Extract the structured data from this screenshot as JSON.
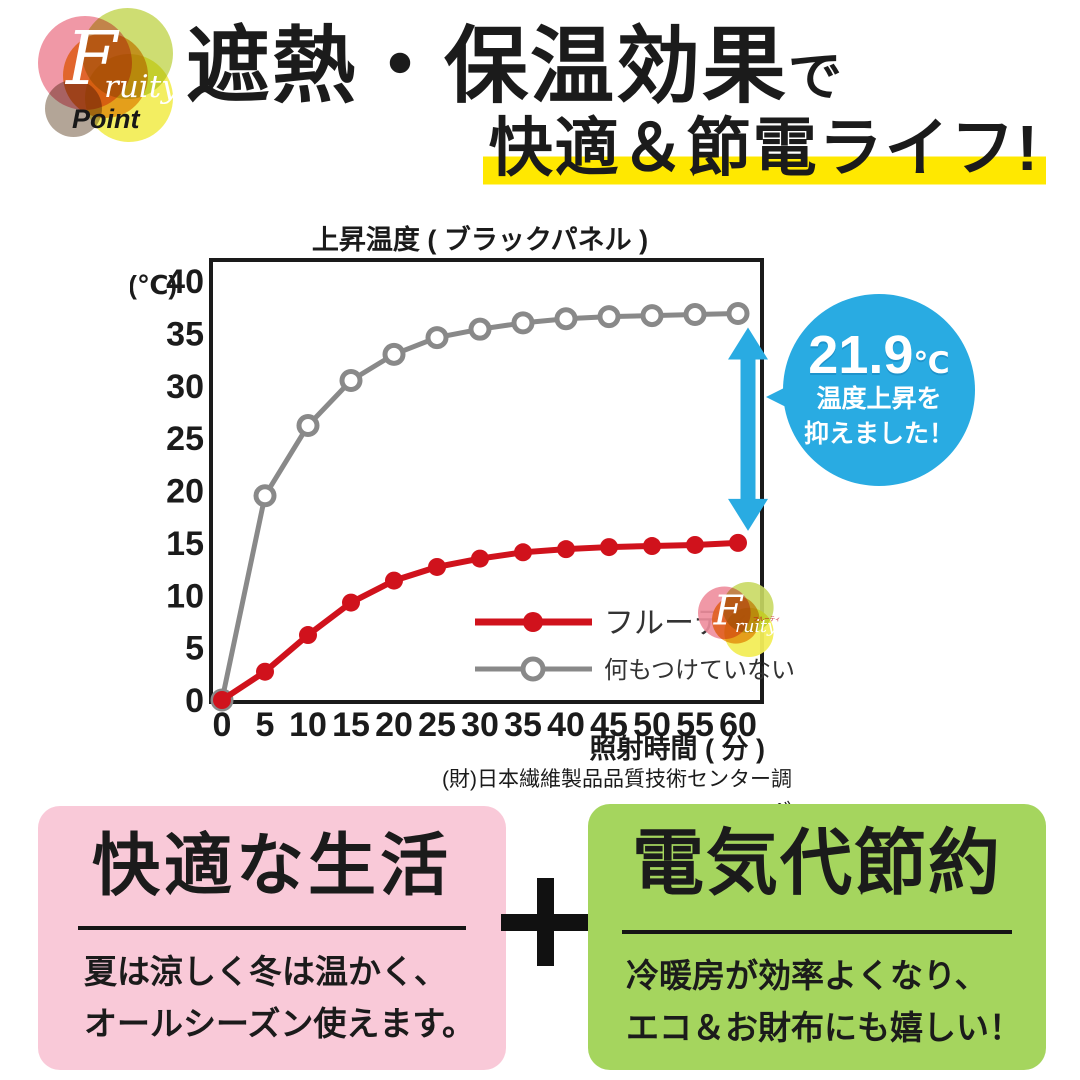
{
  "header": {
    "logo": {
      "brand_f": "F",
      "brand_rest": "ruity",
      "brand_sub": "Point"
    },
    "title_line1_main": "遮熱・保温効果",
    "title_line1_particle": "で",
    "title_line2": "快適＆節電ライフ!"
  },
  "chart": {
    "source_note": "(財)日本繊維製品品質技術センター調べ",
    "legend_logo_micro_label": "フルーティ"
  },
  "chart_data": {
    "type": "line",
    "title": "上昇温度 ( ブラックパネル )",
    "x": [
      0,
      5,
      10,
      15,
      20,
      25,
      30,
      35,
      40,
      45,
      50,
      55,
      60
    ],
    "series": [
      {
        "name": "フルーティ",
        "color": "#d0121c",
        "marker": "filled",
        "values": [
          0,
          2.7,
          6.2,
          9.3,
          11.4,
          12.7,
          13.5,
          14.1,
          14.4,
          14.6,
          14.7,
          14.8,
          15.0
        ]
      },
      {
        "name": "何もつけていない",
        "color": "#898989",
        "marker": "open",
        "values": [
          0,
          19.5,
          26.2,
          30.5,
          33.0,
          34.6,
          35.4,
          36.0,
          36.4,
          36.6,
          36.7,
          36.8,
          36.9
        ]
      }
    ],
    "xlabel": "照射時間 ( 分 )",
    "ylabel": "(℃)",
    "xlim": [
      0,
      60
    ],
    "ylim": [
      0,
      40
    ],
    "yticks": [
      40,
      35,
      30,
      25,
      20,
      15,
      10,
      5,
      0
    ],
    "grid": false,
    "legend_position": "lower right"
  },
  "callout": {
    "value": "21.9",
    "unit": "℃",
    "line1": "温度上昇を",
    "line2": "抑えました！",
    "arrow_color": "#29abe2"
  },
  "bottom": {
    "plus_icon": "plus",
    "comfort_card": {
      "heading": "快適な生活",
      "body_line1": "夏は涼しく冬は温かく、",
      "body_line2": "オールシーズン使えます。"
    },
    "saving_card": {
      "heading": "電気代節約",
      "body_line1": "冷暖房が効率よくなり、",
      "body_line2": "エコ＆お財布にも嬉しい！"
    }
  },
  "colors": {
    "accent_blue": "#29abe2",
    "highlight_yellow": "#ffe800",
    "card_pink": "#f9c9d8",
    "card_green": "#a5d55e",
    "line_red": "#d0121c",
    "line_gray": "#898989"
  }
}
